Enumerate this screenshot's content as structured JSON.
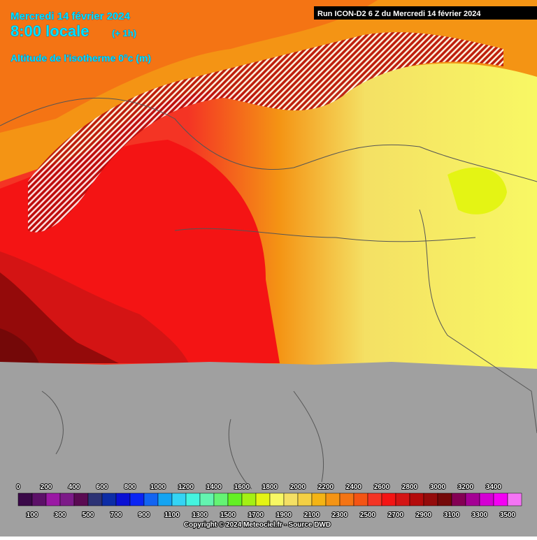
{
  "header": {
    "date": "Mercredi 14 février 2024",
    "time": "8:00 locale",
    "offset": "(+ 1h)",
    "parameter": "Altitude de l'isotherme 0°c (m)"
  },
  "run": "Run ICON-D2 6 Z du Mercredi 14 février 2024",
  "legend": {
    "top_labels": [
      0,
      200,
      400,
      600,
      800,
      1000,
      1200,
      1400,
      1600,
      1800,
      2000,
      2200,
      2400,
      2600,
      2800,
      3000,
      3200,
      3400
    ],
    "bottom_labels": [
      100,
      300,
      500,
      700,
      900,
      1100,
      1300,
      1500,
      1700,
      1900,
      2100,
      2300,
      2500,
      2700,
      2900,
      3100,
      3300,
      3500
    ],
    "colors": [
      "#3a0848",
      "#5c1068",
      "#9a18a4",
      "#7c1a88",
      "#5a0a52",
      "#2c3274",
      "#0c2ca6",
      "#0a10d4",
      "#0a24f4",
      "#1264f2",
      "#14a4f2",
      "#34d4f4",
      "#44f4e0",
      "#64f4b0",
      "#64f474",
      "#64f024",
      "#a4f014",
      "#e4f414",
      "#f8f864",
      "#f4e064",
      "#f4d044",
      "#f4b414",
      "#f49414",
      "#f47414",
      "#f45414",
      "#f43424",
      "#f41414",
      "#d41414",
      "#b40a0a",
      "#940a0a",
      "#740808",
      "#840054",
      "#a40094",
      "#d400d4",
      "#f400f4",
      "#f474f4"
    ]
  },
  "copyright": "Copyright © 2024 Meteociel.fr - Source DWD"
}
